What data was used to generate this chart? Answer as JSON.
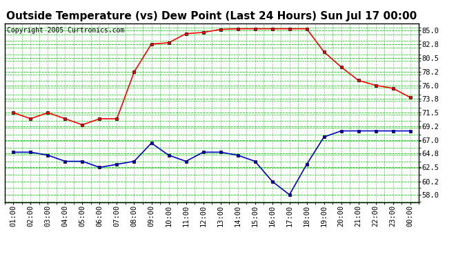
{
  "title": "Outside Temperature (vs) Dew Point (Last 24 Hours) Sun Jul 17 00:00",
  "copyright": "Copyright 2005 Curtronics.com",
  "background_color": "#ffffff",
  "plot_bg_color": "#ffffff",
  "x_labels": [
    "01:00",
    "02:00",
    "03:00",
    "04:00",
    "05:00",
    "06:00",
    "07:00",
    "08:00",
    "09:00",
    "10:00",
    "11:00",
    "12:00",
    "13:00",
    "14:00",
    "15:00",
    "16:00",
    "17:00",
    "18:00",
    "19:00",
    "20:00",
    "21:00",
    "22:00",
    "23:00",
    "00:00"
  ],
  "y_ticks": [
    58.0,
    60.2,
    62.5,
    64.8,
    67.0,
    69.2,
    71.5,
    73.8,
    76.0,
    78.2,
    80.5,
    82.8,
    85.0
  ],
  "ylim": [
    56.8,
    86.2
  ],
  "temp_data": [
    71.5,
    70.5,
    71.5,
    70.5,
    69.5,
    70.5,
    70.5,
    78.2,
    82.8,
    83.0,
    84.5,
    84.7,
    85.2,
    85.3,
    85.3,
    85.3,
    85.3,
    85.3,
    81.5,
    79.0,
    76.8,
    76.0,
    75.5,
    74.0
  ],
  "dew_data": [
    65.0,
    65.0,
    64.5,
    63.5,
    63.5,
    62.5,
    63.0,
    63.5,
    66.5,
    64.5,
    63.5,
    65.0,
    65.0,
    64.5,
    63.5,
    60.2,
    58.0,
    63.0,
    67.5,
    68.5,
    68.5,
    68.5,
    68.5,
    68.5
  ],
  "temp_color": "#ff0000",
  "dew_color": "#0000cc",
  "title_fontsize": 11,
  "copyright_fontsize": 7,
  "tick_fontsize": 7.5
}
